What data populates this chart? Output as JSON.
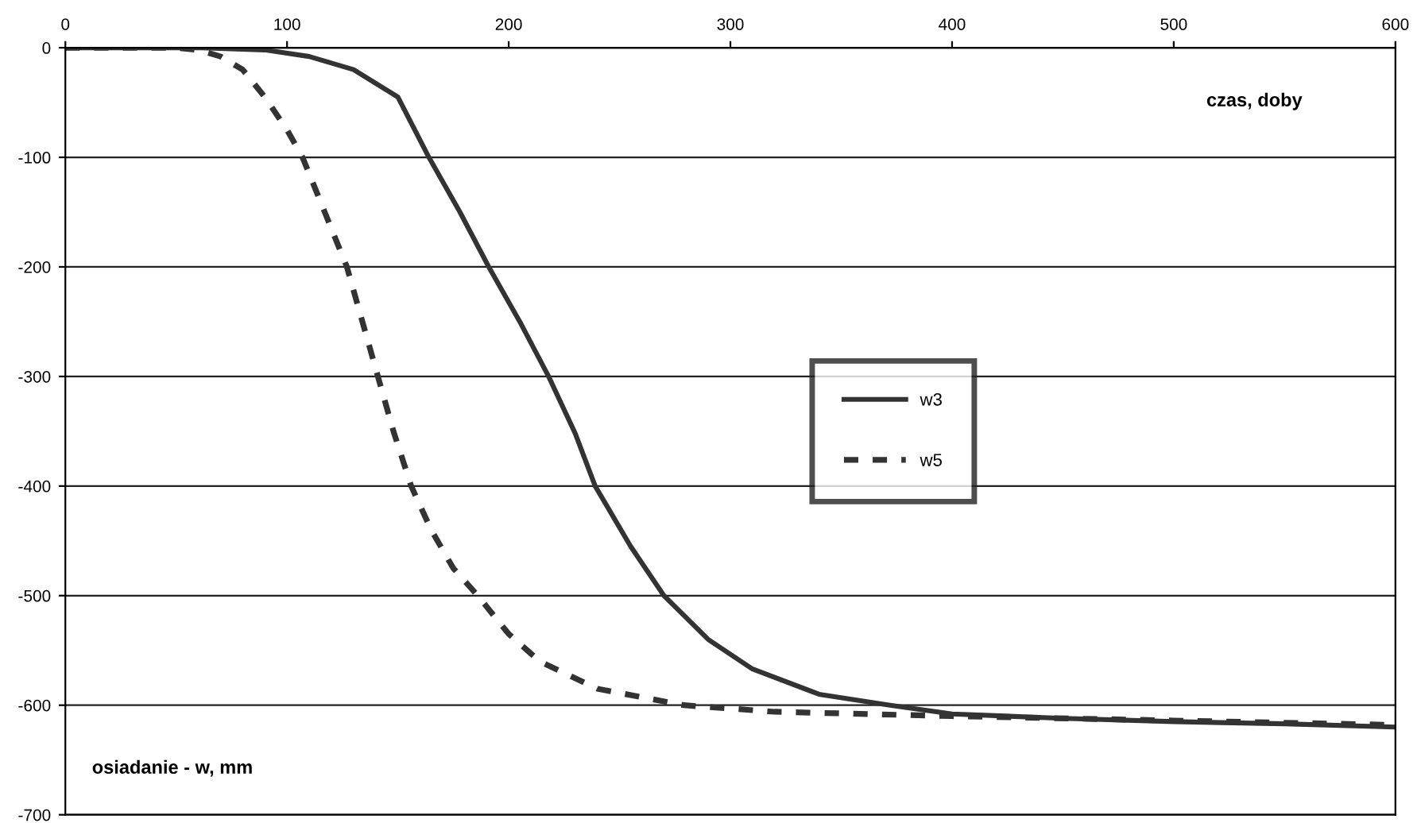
{
  "chart_data": {
    "type": "line",
    "xlabel": "czas, doby",
    "ylabel": "osiadanie - w, mm",
    "xlim": [
      0,
      600
    ],
    "ylim": [
      -700,
      0
    ],
    "xticks": [
      0,
      100,
      200,
      300,
      400,
      500,
      600
    ],
    "yticks": [
      0,
      -100,
      -200,
      -300,
      -400,
      -500,
      -600,
      -700
    ],
    "grid": "y",
    "legend": "center right",
    "marker": "none",
    "series": [
      {
        "name": "w3",
        "color": "#333333",
        "line_style": "solid",
        "x": [
          0,
          60,
          90,
          110,
          130,
          150,
          164,
          178,
          191,
          205,
          218,
          230,
          239,
          255,
          270,
          290,
          310,
          340,
          372,
          400,
          450,
          500,
          550,
          600
        ],
        "values": [
          0,
          0,
          -2,
          -8,
          -20,
          -45,
          -100,
          -150,
          -200,
          -250,
          -300,
          -352,
          -400,
          -455,
          -500,
          -540,
          -567,
          -590,
          -600,
          -608,
          -612,
          -615,
          -617,
          -620
        ]
      },
      {
        "name": "w5",
        "color": "#333333",
        "line_style": "dashed",
        "x": [
          0,
          50,
          60,
          70,
          80,
          90,
          100,
          107,
          117,
          127,
          134,
          141,
          148,
          156,
          165,
          175,
          186,
          200,
          214,
          240,
          279,
          320,
          400,
          500,
          600
        ],
        "values": [
          0,
          0,
          -2,
          -8,
          -20,
          -45,
          -75,
          -100,
          -150,
          -200,
          -250,
          -300,
          -350,
          -400,
          -440,
          -475,
          -500,
          -535,
          -560,
          -585,
          -600,
          -606,
          -610,
          -614,
          -618
        ]
      }
    ]
  }
}
